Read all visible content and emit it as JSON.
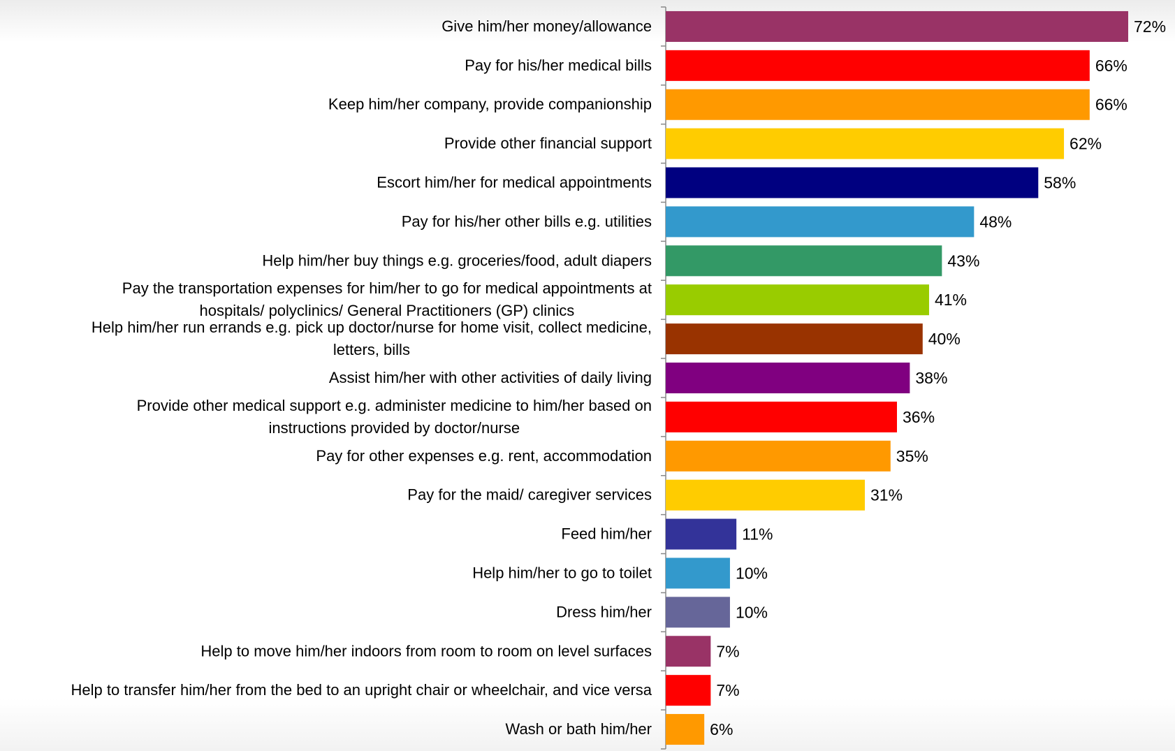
{
  "chart_data": {
    "type": "bar",
    "orientation": "horizontal",
    "categories": [
      [
        "Give him/her money/allowance"
      ],
      [
        "Pay for his/her medical bills"
      ],
      [
        "Keep him/her company, provide companionship"
      ],
      [
        "Provide other financial support"
      ],
      [
        "Escort him/her for medical appointments"
      ],
      [
        "Pay for his/her other bills e.g. utilities"
      ],
      [
        "Help him/her buy things e.g. groceries/food, adult diapers"
      ],
      [
        "Pay the transportation expenses for him/her to go for medical appointments at",
        "hospitals/ polyclinics/ General Practitioners (GP) clinics"
      ],
      [
        "Help him/her run errands e.g. pick up doctor/nurse for home visit, collect medicine,",
        "letters, bills"
      ],
      [
        "Assist him/her with other activities of daily living"
      ],
      [
        "Provide other medical support e.g. administer medicine to him/her based on",
        "instructions provided by doctor/nurse"
      ],
      [
        "Pay for other expenses e.g. rent, accommodation"
      ],
      [
        "Pay for the maid/ caregiver services"
      ],
      [
        "Feed him/her"
      ],
      [
        "Help him/her to go to toilet"
      ],
      [
        "Dress him/her"
      ],
      [
        "Help to move him/her indoors from room to room on level surfaces"
      ],
      [
        "Help to transfer him/her from the bed to an upright chair or wheelchair, and vice versa"
      ],
      [
        "Wash or bath him/her"
      ]
    ],
    "values": [
      72,
      66,
      66,
      62,
      58,
      48,
      43,
      41,
      40,
      38,
      36,
      35,
      31,
      11,
      10,
      10,
      7,
      7,
      6
    ],
    "value_labels": [
      "72%",
      "66%",
      "66%",
      "62%",
      "58%",
      "48%",
      "43%",
      "41%",
      "40%",
      "38%",
      "36%",
      "35%",
      "31%",
      "11%",
      "10%",
      "10%",
      "7%",
      "7%",
      "6%"
    ],
    "colors": [
      "#993366",
      "#ff0000",
      "#ff9900",
      "#ffcc00",
      "#000080",
      "#3399cc",
      "#339966",
      "#99cc00",
      "#993300",
      "#800080",
      "#ff0000",
      "#ff9900",
      "#ffcc00",
      "#333399",
      "#3399cc",
      "#666699",
      "#993366",
      "#ff0000",
      "#ff9900"
    ],
    "xlim": [
      0,
      72
    ],
    "title": "",
    "xlabel": "",
    "ylabel": "",
    "grid": false,
    "legend": "none"
  }
}
